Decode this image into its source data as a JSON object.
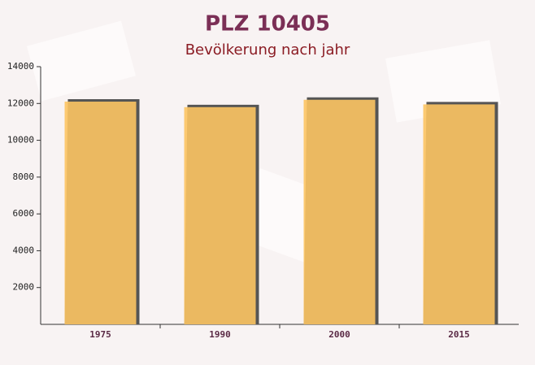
{
  "chart_data": {
    "type": "bar",
    "title": "PLZ 10405",
    "subtitle": "Bevölkerung nach jahr",
    "categories": [
      "1975",
      "1990",
      "2000",
      "2015"
    ],
    "values": [
      12100,
      11800,
      12200,
      11950
    ],
    "color": "#fcc463",
    "ylim": [
      0,
      14000
    ],
    "yticks": [
      2000,
      4000,
      6000,
      8000,
      10000,
      12000,
      14000
    ]
  }
}
